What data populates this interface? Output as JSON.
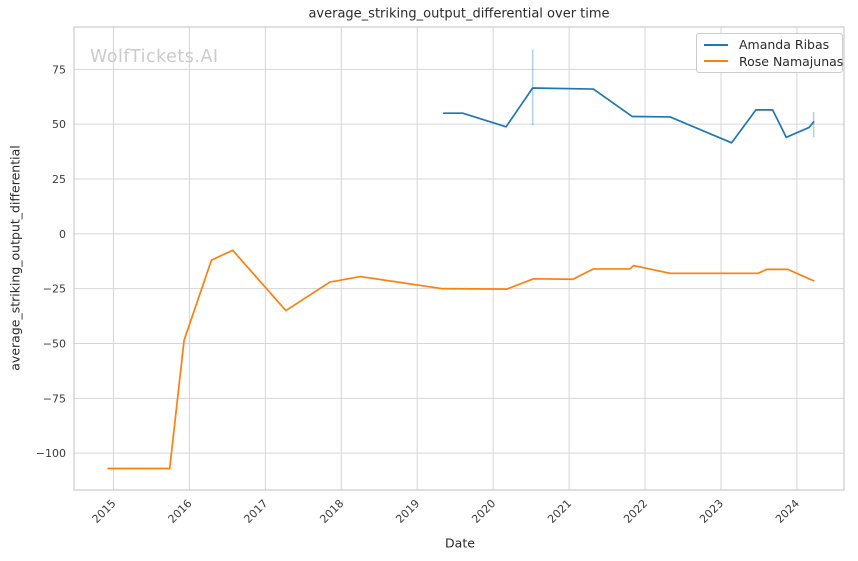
{
  "chart_data": {
    "type": "line",
    "title": "average_striking_output_differential over time",
    "watermark": "WolfTickets.AI",
    "xlabel": "Date",
    "ylabel": "average_striking_output_differential",
    "xlim": [
      2014.48,
      2024.62
    ],
    "ylim": [
      -116.8,
      94.3
    ],
    "grid": true,
    "xticks": {
      "values": [
        2015,
        2016,
        2017,
        2018,
        2019,
        2020,
        2021,
        2022,
        2023,
        2024
      ],
      "labels": [
        "2015",
        "2016",
        "2017",
        "2018",
        "2019",
        "2020",
        "2021",
        "2022",
        "2023",
        "2024"
      ]
    },
    "yticks": {
      "values": [
        75,
        50,
        25,
        0,
        -25,
        -50,
        -75,
        -100
      ],
      "labels": [
        "75",
        "50",
        "25",
        "0",
        "−25",
        "−50",
        "−75",
        "−100"
      ]
    },
    "legend": {
      "position": "upper right",
      "entries": [
        {
          "label": "Amanda Ribas",
          "color": "#1f77b4"
        },
        {
          "label": "Rose Namajunas",
          "color": "#ff7f0e"
        }
      ]
    },
    "series": [
      {
        "name": "Amanda Ribas",
        "color": "#1f77b4",
        "points": [
          [
            2019.35,
            55
          ],
          [
            2019.6,
            55
          ],
          [
            2020.17,
            48.8
          ],
          [
            2020.52,
            66.5
          ],
          [
            2021.32,
            66
          ],
          [
            2021.83,
            53.5
          ],
          [
            2022.33,
            53.3
          ],
          [
            2023.14,
            41.5
          ],
          [
            2023.46,
            56.5
          ],
          [
            2023.68,
            56.5
          ],
          [
            2023.86,
            44
          ],
          [
            2024.16,
            48.5
          ],
          [
            2024.22,
            51
          ]
        ]
      },
      {
        "name": "Rose Namajunas",
        "color": "#ff7f0e",
        "points": [
          [
            2014.93,
            -107
          ],
          [
            2015.74,
            -107
          ],
          [
            2015.93,
            -48.5
          ],
          [
            2016.29,
            -12
          ],
          [
            2016.57,
            -7.5
          ],
          [
            2017.27,
            -35
          ],
          [
            2017.85,
            -22
          ],
          [
            2018.25,
            -19.5
          ],
          [
            2019.33,
            -25
          ],
          [
            2020.18,
            -25.2
          ],
          [
            2020.53,
            -20.5
          ],
          [
            2021.05,
            -20.7
          ],
          [
            2021.32,
            -16
          ],
          [
            2021.8,
            -16
          ],
          [
            2021.85,
            -14.5
          ],
          [
            2022.33,
            -18
          ],
          [
            2023.49,
            -18
          ],
          [
            2023.6,
            -16.2
          ],
          [
            2023.88,
            -16.2
          ],
          [
            2024.22,
            -21.4
          ]
        ]
      }
    ],
    "error_bars": [
      {
        "series": "Amanda Ribas",
        "x": 2020.52,
        "y_low": 49.5,
        "y_high": 84
      },
      {
        "series": "Amanda Ribas",
        "x": 2024.22,
        "y_low": 44,
        "y_high": 55.5
      }
    ],
    "colors": {
      "background": "#ffffff",
      "grid": "#d6d6d6",
      "spine": "#cccccc",
      "tick_text": "#3a3a3a",
      "watermark": "#cbcbcd",
      "error_bar": "#1f77b4"
    }
  }
}
